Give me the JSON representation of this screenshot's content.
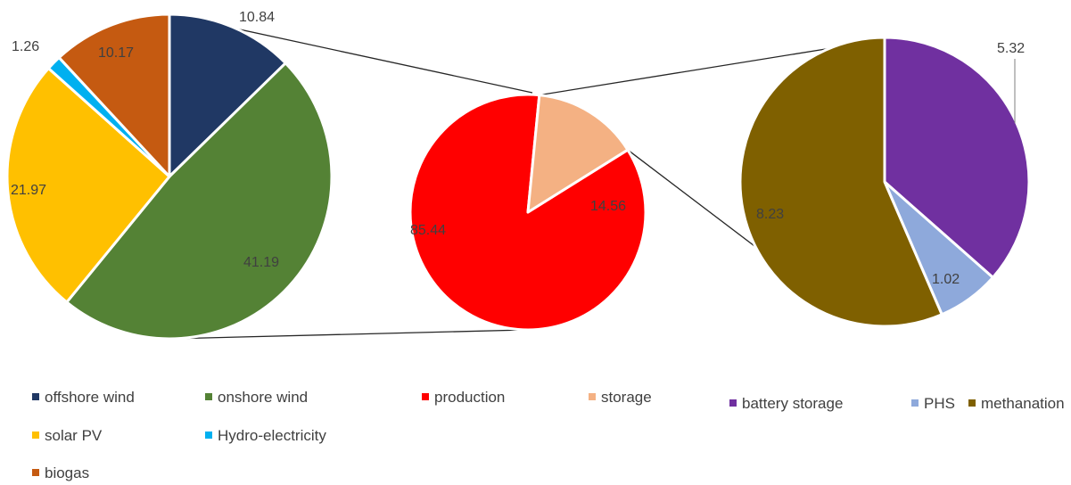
{
  "chart_data": [
    {
      "type": "pie",
      "name_key": "production-breakdown",
      "slices": [
        {
          "label": "offshore wind",
          "value": 10.84,
          "color": "#203864"
        },
        {
          "label": "onshore wind",
          "value": 41.19,
          "color": "#548235"
        },
        {
          "label": "solar PV",
          "value": 21.97,
          "color": "#FFC000"
        },
        {
          "label": "Hydro-electricity",
          "value": 1.26,
          "color": "#00B0F0"
        },
        {
          "label": "biogas",
          "value": 10.17,
          "color": "#C55A11"
        }
      ]
    },
    {
      "type": "pie",
      "name_key": "production-vs-storage",
      "slices": [
        {
          "label": "production",
          "value": 85.44,
          "color": "#FF0000"
        },
        {
          "label": "storage",
          "value": 14.56,
          "color": "#F4B183"
        }
      ]
    },
    {
      "type": "pie",
      "name_key": "storage-breakdown",
      "slices": [
        {
          "label": "battery storage",
          "value": 5.32,
          "color": "#7030A0"
        },
        {
          "label": "PHS",
          "value": 1.02,
          "color": "#8EA9DB"
        },
        {
          "label": "methanation",
          "value": 8.23,
          "color": "#7F6000"
        }
      ]
    }
  ],
  "legends": {
    "left": [
      "offshore wind",
      "onshore wind",
      "solar PV",
      "Hydro-electricity",
      "biogas"
    ],
    "middle": [
      "production",
      "storage"
    ],
    "right": [
      "battery storage",
      "PHS",
      "methanation"
    ]
  }
}
